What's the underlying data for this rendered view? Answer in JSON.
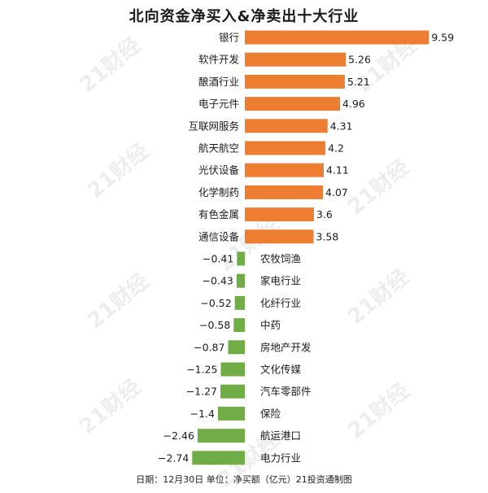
{
  "watermark": "21财经",
  "colors": {
    "positive": "#ED7D31",
    "negative": "#70AD47",
    "text": "#1a1a1a"
  },
  "chart_data": {
    "type": "bar",
    "orientation": "horizontal",
    "title": "北向资金净买入&净卖出十大行业",
    "footer": "日期：12月30日 单位：净买额（亿元）21投资通制图",
    "categories": [
      "银行",
      "软件开发",
      "酿酒行业",
      "电子元件",
      "互联网服务",
      "航天航空",
      "光伏设备",
      "化学制药",
      "有色金属",
      "通信设备",
      "农牧饲渔",
      "家电行业",
      "化纤行业",
      "中药",
      "房地产开发",
      "文化传媒",
      "汽车零部件",
      "保险",
      "航运港口",
      "电力行业"
    ],
    "values": [
      9.59,
      5.26,
      5.21,
      4.96,
      4.31,
      4.2,
      4.11,
      4.07,
      3.6,
      3.58,
      -0.41,
      -0.43,
      -0.52,
      -0.58,
      -0.87,
      -1.25,
      -1.27,
      -1.4,
      -2.46,
      -2.74
    ],
    "value_labels": [
      "9.59",
      "5.26",
      "5.21",
      "4.96",
      "4.31",
      "4.2",
      "4.11",
      "4.07",
      "3.6",
      "3.58",
      "−0.41",
      "−0.43",
      "−0.52",
      "−0.58",
      "−0.87",
      "−1.25",
      "−1.27",
      "−1.4",
      "−2.46",
      "−2.74"
    ],
    "xlim": [
      -2.74,
      9.59
    ],
    "grid": false,
    "legend": "none"
  }
}
